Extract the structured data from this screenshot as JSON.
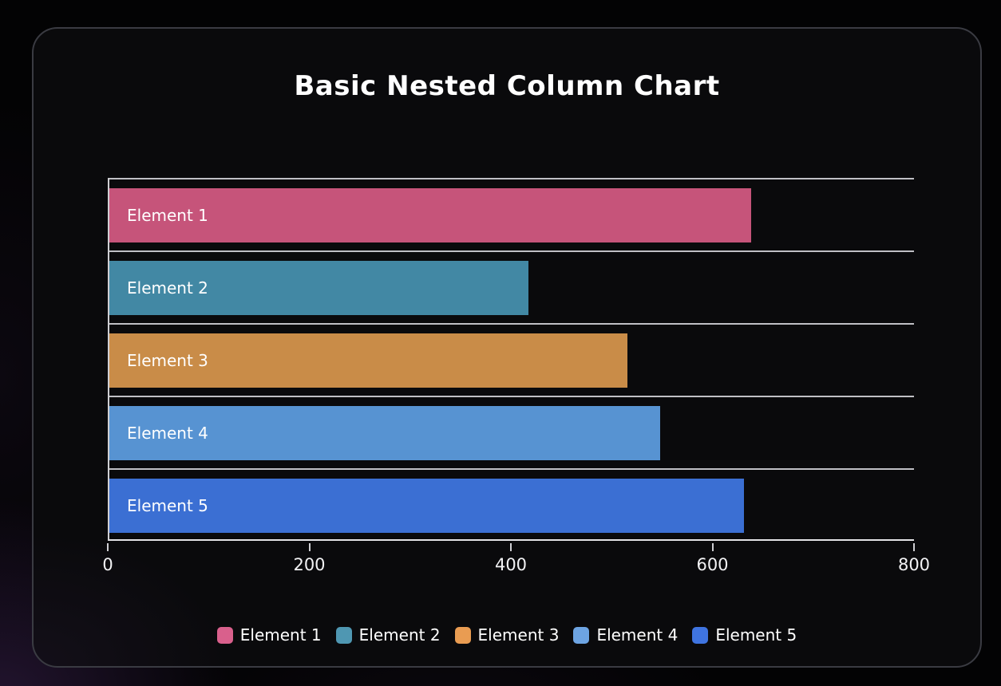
{
  "card": {
    "title": "Basic Nested Column Chart"
  },
  "chart_data": {
    "type": "bar",
    "orientation": "horizontal",
    "title": "Basic Nested Column Chart",
    "categories": [
      "Element 1",
      "Element 2",
      "Element 3",
      "Element 4",
      "Element 5"
    ],
    "series": [
      {
        "name": "Element 1",
        "value": 638,
        "color": "#c6547a",
        "legend_color": "#d9608c"
      },
      {
        "name": "Element 2",
        "value": 417,
        "color": "#4288a4",
        "legend_color": "#4f97b2"
      },
      {
        "name": "Element 3",
        "value": 515,
        "color": "#c98c48",
        "legend_color": "#e99c52"
      },
      {
        "name": "Element 4",
        "value": 548,
        "color": "#5793d2",
        "legend_color": "#6da4e3"
      },
      {
        "name": "Element 5",
        "value": 631,
        "color": "#3b6fd3",
        "legend_color": "#3f74e0"
      }
    ],
    "bar_labels_inside": true,
    "xlim": [
      0,
      800
    ],
    "x_ticks": [
      0,
      200,
      400,
      600,
      800
    ],
    "grid": "row separator lines above each bar plus bottom axis line and left axis line",
    "legend_position": "bottom",
    "background_color": "#0a0a0c",
    "card_border_color": "#3a3b42",
    "gridline_color": "#c0c0c5",
    "text_color": "#ffffff",
    "accent_glow_color": "#74409e"
  }
}
